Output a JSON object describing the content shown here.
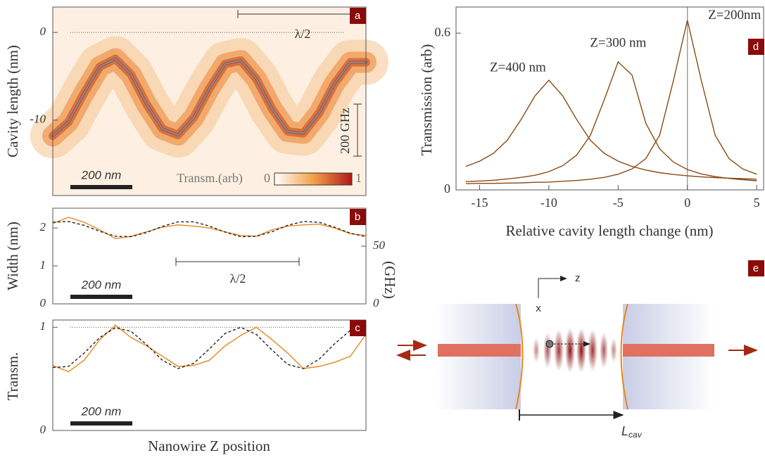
{
  "chart_data": [
    {
      "type": "line",
      "label": "a",
      "ylabel": "Cavity length (nm)",
      "x": [
        0,
        50,
        100,
        150,
        200,
        250,
        300,
        350,
        400,
        450,
        500,
        550,
        600,
        650,
        700,
        750,
        800,
        850,
        900,
        950,
        1000
      ],
      "xlim": [
        0,
        1000
      ],
      "ylim": [
        -18.6,
        2.9
      ],
      "yticks": [
        -10,
        0
      ],
      "hline": 0,
      "heatmap": true,
      "series": [
        {
          "color": "#7d8cab",
          "values": [
            -11.8,
            -10.2,
            -6.9,
            -3.9,
            -3.0,
            -4.8,
            -8.2,
            -11.0,
            -11.7,
            -9.7,
            -6.4,
            -3.6,
            -3.2,
            -5.3,
            -8.7,
            -11.3,
            -11.5,
            -9.2,
            -5.8,
            -3.4,
            -3.4
          ]
        }
      ],
      "colorbar": {
        "label": "Transm.(arb)",
        "ticks": [
          0,
          1
        ]
      },
      "annotations": [
        "λ/2",
        "200 GHz",
        "200 nm"
      ]
    },
    {
      "type": "line",
      "label": "b",
      "ylabel": "Width (nm)",
      "y2label": "(GHz)",
      "x": [
        0,
        50,
        100,
        150,
        200,
        250,
        300,
        350,
        400,
        450,
        500,
        550,
        600,
        650,
        700,
        750,
        800,
        850,
        900,
        950,
        1000
      ],
      "xlim": [
        0,
        1000
      ],
      "ylim": [
        0,
        2.52
      ],
      "yticks": [
        0,
        1,
        2
      ],
      "y2lim": [
        0,
        83
      ],
      "y2ticks": [
        0,
        50
      ],
      "series": [
        {
          "color": "#e8861c",
          "values": [
            2.12,
            2.28,
            2.15,
            1.95,
            1.72,
            1.78,
            1.9,
            2.02,
            2.08,
            2.05,
            2.0,
            1.9,
            1.8,
            1.78,
            1.95,
            2.05,
            2.08,
            2.1,
            2.0,
            1.85,
            1.8
          ]
        },
        {
          "color": "#222222",
          "style": "dashed",
          "values": [
            2.15,
            2.17,
            2.07,
            1.91,
            1.78,
            1.77,
            1.88,
            2.04,
            2.16,
            2.16,
            2.05,
            1.89,
            1.77,
            1.78,
            1.9,
            2.07,
            2.17,
            2.15,
            2.02,
            1.86,
            1.77
          ]
        }
      ],
      "annotations": [
        "λ/2",
        "200 nm"
      ]
    },
    {
      "type": "line",
      "label": "c",
      "ylabel": "Transm.",
      "xlabel": "Nanowire Z position",
      "x": [
        0,
        50,
        100,
        150,
        200,
        250,
        300,
        350,
        400,
        450,
        500,
        550,
        600,
        650,
        700,
        750,
        800,
        850,
        900,
        950,
        1000
      ],
      "xlim": [
        0,
        1000
      ],
      "ylim": [
        0,
        1.07
      ],
      "yticks": [
        0,
        1
      ],
      "hline": 1,
      "series": [
        {
          "color": "#e8861c",
          "values": [
            0.63,
            0.57,
            0.68,
            0.88,
            1.02,
            0.9,
            0.82,
            0.72,
            0.62,
            0.63,
            0.68,
            0.82,
            0.92,
            1.0,
            0.88,
            0.75,
            0.6,
            0.62,
            0.66,
            0.72,
            0.93
          ]
        },
        {
          "color": "#222222",
          "style": "dashed",
          "values": [
            0.61,
            0.62,
            0.75,
            0.9,
            0.996,
            0.96,
            0.83,
            0.68,
            0.6,
            0.65,
            0.79,
            0.94,
            1.0,
            0.93,
            0.78,
            0.64,
            0.6,
            0.69,
            0.84,
            0.97,
            0.99
          ]
        }
      ],
      "annotations": [
        "200 nm"
      ]
    },
    {
      "type": "line",
      "label": "d",
      "ylabel": "Transmission (arb)",
      "xlabel": "Relative cavity length change (nm)",
      "x": [
        -16,
        -15,
        -14,
        -13,
        -12,
        -11,
        -10,
        -9,
        -8,
        -7,
        -6,
        -5,
        -4,
        -3,
        -2,
        -1,
        0,
        1,
        2,
        3,
        4,
        5
      ],
      "xlim": [
        -16.7,
        5.5
      ],
      "ylim": [
        0,
        0.7
      ],
      "xticks": [
        -15,
        -10,
        -5,
        0,
        5
      ],
      "yticks": [
        0,
        0.6
      ],
      "vline": 0,
      "series": [
        {
          "name": "Z=200nm",
          "color": "#8b4a14",
          "values": [
            0.024,
            0.025,
            0.025,
            0.026,
            0.027,
            0.029,
            0.03,
            0.033,
            0.036,
            0.041,
            0.048,
            0.06,
            0.08,
            0.12,
            0.21,
            0.42,
            0.65,
            0.42,
            0.21,
            0.12,
            0.08,
            0.06
          ]
        },
        {
          "name": "Z=300 nm",
          "color": "#8b4a14",
          "values": [
            0.032,
            0.034,
            0.037,
            0.042,
            0.048,
            0.056,
            0.07,
            0.093,
            0.133,
            0.209,
            0.345,
            0.49,
            0.44,
            0.255,
            0.157,
            0.106,
            0.078,
            0.061,
            0.051,
            0.044,
            0.039,
            0.035
          ]
        },
        {
          "name": "Z=400 nm",
          "color": "#8b4a14",
          "values": [
            0.09,
            0.11,
            0.14,
            0.19,
            0.27,
            0.36,
            0.42,
            0.36,
            0.27,
            0.19,
            0.14,
            0.11,
            0.09,
            0.076,
            0.066,
            0.059,
            0.054,
            0.05,
            0.047,
            0.045,
            0.043,
            0.041
          ]
        }
      ]
    },
    {
      "type": "diagram",
      "label": "e",
      "axes": [
        "z",
        "x"
      ],
      "length_label": "L",
      "length_subscript": "cav"
    }
  ]
}
